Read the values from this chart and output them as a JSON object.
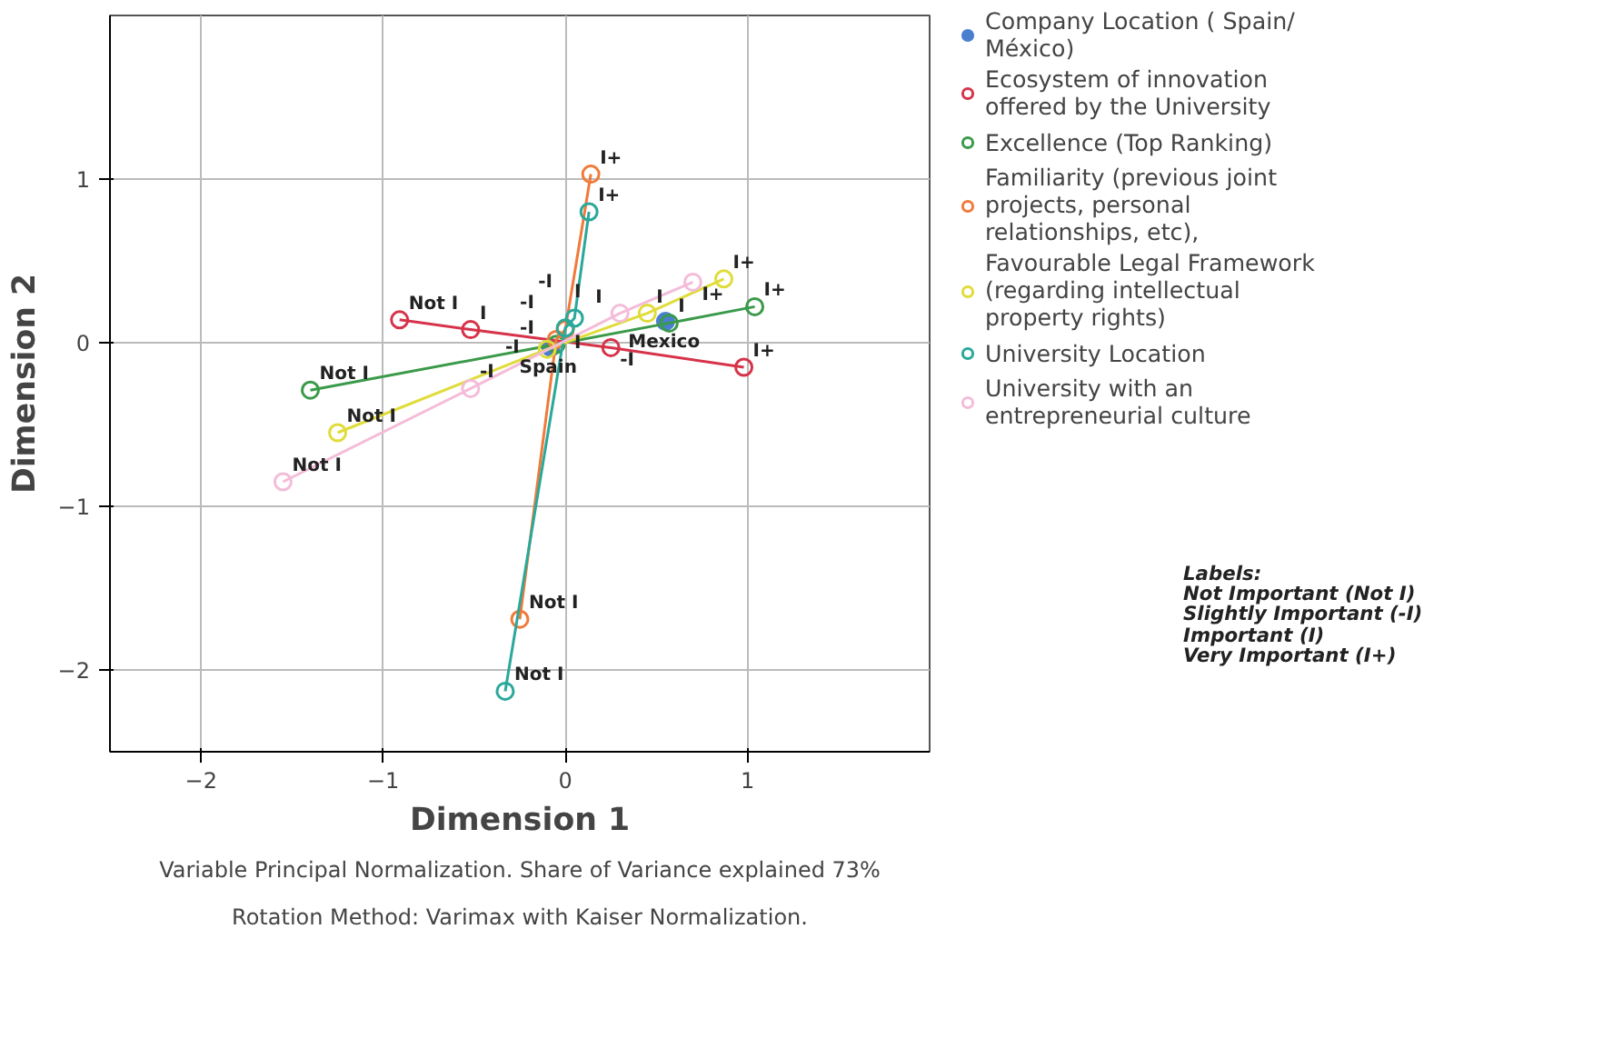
{
  "chart_data": {
    "type": "scatter",
    "xlabel": "Dimension 1",
    "ylabel": "Dimension 2",
    "xlim": [
      -2.5,
      2.0
    ],
    "ylim": [
      -2.5,
      2.0
    ],
    "xticks": [
      -2,
      -1,
      0,
      1
    ],
    "yticks": [
      -2,
      -1,
      0,
      1
    ],
    "grid": true,
    "legend": "right",
    "marker": "circle",
    "series": [
      {
        "name": "Company Location ( Spain/ México)",
        "type": "scatter",
        "color": "#4a7fd0",
        "x": [
          -0.08,
          0.55
        ],
        "values": [
          -0.03,
          0.13
        ],
        "value_labels": [
          "Spain",
          "Mexico"
        ]
      },
      {
        "name": "Ecosystem of innovation offered by the University",
        "type": "line",
        "color": "#d6334a",
        "x": [
          -0.91,
          -0.52,
          0.25,
          0.98
        ],
        "values": [
          0.14,
          0.08,
          -0.03,
          -0.15
        ],
        "value_labels": [
          "Not I",
          "I",
          "-I",
          "I+"
        ]
      },
      {
        "name": "Excellence (Top Ranking)",
        "type": "line",
        "color": "#3a9a4a",
        "x": [
          -1.4,
          -0.05,
          0.57,
          1.04
        ],
        "values": [
          -0.29,
          -0.01,
          0.12,
          0.22
        ],
        "value_labels": [
          "Not I",
          "-I",
          "I",
          "I+"
        ]
      },
      {
        "name": "Familiarity (previous joint projects, personal relationships, etc),",
        "type": "line",
        "color": "#f07a3a",
        "x": [
          -0.25,
          -0.05,
          0.0,
          0.14
        ],
        "values": [
          -1.69,
          0.02,
          0.08,
          1.03
        ],
        "value_labels": [
          "Not I",
          "-I",
          "I",
          "I+"
        ]
      },
      {
        "name": "Favourable Legal Framework (regarding intellectual property rights)",
        "type": "line",
        "color": "#e0dc3a",
        "x": [
          -1.25,
          -0.1,
          0.45,
          0.87
        ],
        "values": [
          -0.55,
          -0.04,
          0.18,
          0.39
        ],
        "value_labels": [
          "Not I",
          "-I",
          "I",
          "I+"
        ]
      },
      {
        "name": "University Location",
        "type": "line",
        "color": "#2aa89a",
        "x": [
          -0.33,
          0.0,
          0.05,
          0.13
        ],
        "values": [
          -2.13,
          0.09,
          0.15,
          0.8
        ],
        "value_labels": [
          "Not I",
          "I",
          "-I",
          "I+"
        ]
      },
      {
        "name": "University with an entrepreneurial culture",
        "type": "line",
        "color": "#f4bcd8",
        "x": [
          -1.55,
          -0.52,
          0.3,
          0.7
        ],
        "values": [
          -0.85,
          -0.28,
          0.18,
          0.37
        ],
        "value_labels": [
          "Not I",
          "-I",
          "I",
          "I+"
        ]
      }
    ],
    "annotations": [
      "Labels:\nNot Important (Not I)\nSlightly Important (-I)\nImportant (I)\nVery Important  (I+)",
      "Variable Principal Normalization. Share of Variance explained 73%",
      "Rotation Method: Varimax with Kaiser Normalization."
    ]
  }
}
